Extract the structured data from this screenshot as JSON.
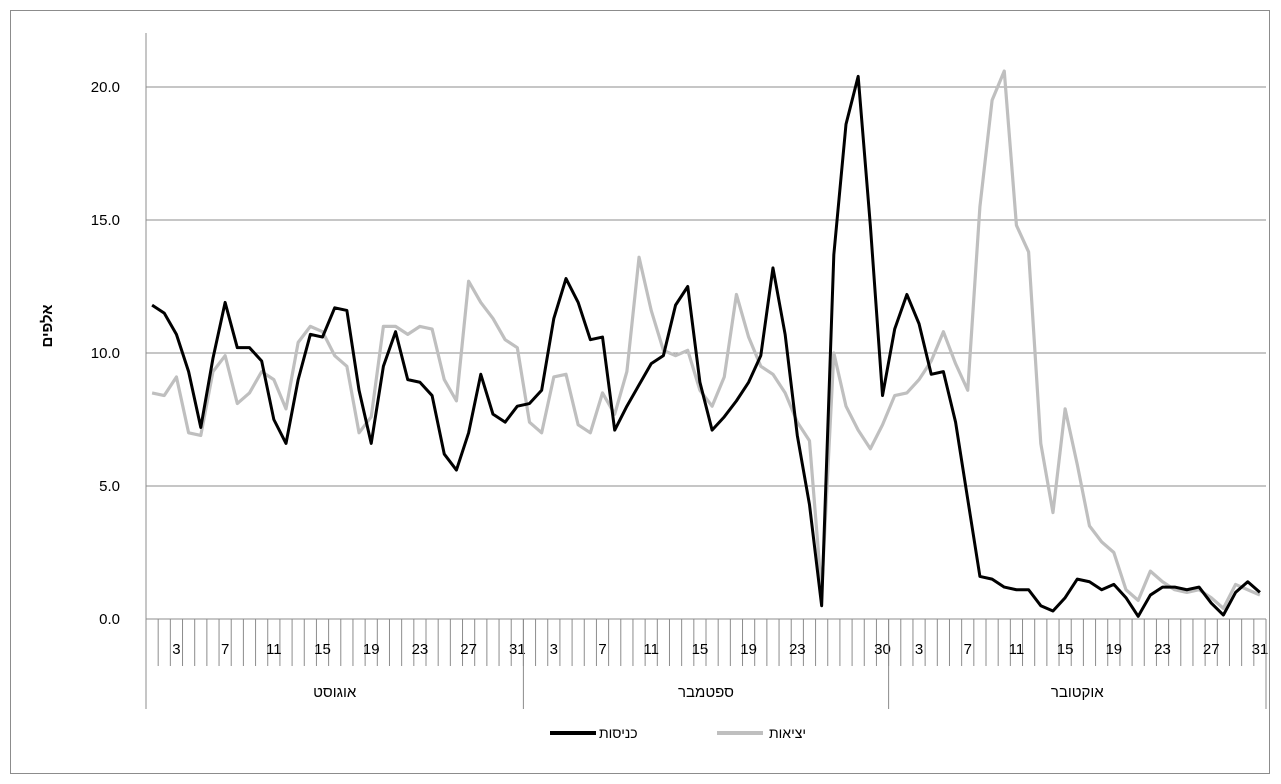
{
  "chart_data": {
    "type": "line",
    "ylabel": "אלפים",
    "ylim": [
      0,
      22
    ],
    "yticks": [
      "0.0",
      "5.0",
      "10.0",
      "15.0",
      "20.0"
    ],
    "ytick_values": [
      0,
      5,
      10,
      15,
      20
    ],
    "grid": "horizontal",
    "legend_position": "bottom",
    "months": [
      {
        "name": "אוגוסט",
        "days": 31
      },
      {
        "name": "ספטמבר",
        "days": 30
      },
      {
        "name": "אוקטובר",
        "days": 31
      }
    ],
    "x_tick_labels": {
      "אוגוסט": [
        3,
        7,
        11,
        15,
        19,
        23,
        27,
        31
      ],
      "ספטמבר": [
        3,
        7,
        11,
        15,
        19,
        23,
        30
      ],
      "אוקטובר": [
        3,
        7,
        11,
        15,
        19,
        23,
        27,
        31
      ]
    },
    "series": [
      {
        "name": "כניסות",
        "color": "#000000",
        "values": [
          11.8,
          11.5,
          10.7,
          9.3,
          7.2,
          9.8,
          11.9,
          10.2,
          10.2,
          9.7,
          7.5,
          6.6,
          9.0,
          10.7,
          10.6,
          11.7,
          11.6,
          8.6,
          6.6,
          9.5,
          10.8,
          9.0,
          8.9,
          8.4,
          6.2,
          5.6,
          7.0,
          9.2,
          7.7,
          7.4,
          8.0,
          8.1,
          8.6,
          11.3,
          12.8,
          11.9,
          10.5,
          10.6,
          7.1,
          8.0,
          8.8,
          9.6,
          9.9,
          11.8,
          12.5,
          8.9,
          7.1,
          7.6,
          8.2,
          8.9,
          9.9,
          13.2,
          10.7,
          6.9,
          4.3,
          0.5,
          13.7,
          18.6,
          20.4,
          14.8,
          8.4,
          10.9,
          12.2,
          11.1,
          9.2,
          9.3,
          7.4,
          4.5,
          1.6,
          1.5,
          1.2,
          1.1,
          1.1,
          0.5,
          0.3,
          0.8,
          1.5,
          1.4,
          1.1,
          1.3,
          0.8,
          0.1,
          0.9,
          1.2,
          1.2,
          1.1,
          1.2,
          0.6,
          0.15,
          1.0,
          1.4,
          1.0
        ]
      },
      {
        "name": "יציאות",
        "color": "#bfbfbf",
        "values": [
          8.5,
          8.4,
          9.1,
          7.0,
          6.9,
          9.3,
          9.9,
          8.1,
          8.5,
          9.3,
          9.0,
          7.9,
          10.4,
          11.0,
          10.8,
          9.9,
          9.5,
          7.0,
          7.6,
          11.0,
          11.0,
          10.7,
          11.0,
          10.9,
          9.0,
          8.2,
          12.7,
          11.9,
          11.3,
          10.5,
          10.2,
          7.4,
          7.0,
          9.1,
          9.2,
          7.3,
          7.0,
          8.5,
          7.7,
          9.3,
          13.6,
          11.6,
          10.1,
          9.9,
          10.1,
          8.6,
          8.0,
          9.1,
          12.2,
          10.6,
          9.5,
          9.2,
          8.5,
          7.4,
          6.7,
          1.0,
          10.0,
          8.0,
          7.1,
          6.4,
          7.3,
          8.4,
          8.5,
          9.0,
          9.7,
          10.8,
          9.6,
          8.6,
          15.5,
          19.5,
          20.6,
          14.8,
          13.8,
          6.6,
          4.0,
          7.9,
          5.8,
          3.5,
          2.9,
          2.5,
          1.1,
          0.7,
          1.8,
          1.4,
          1.1,
          1.0,
          1.1,
          0.8,
          0.4,
          1.3,
          1.1,
          0.9
        ]
      }
    ]
  }
}
